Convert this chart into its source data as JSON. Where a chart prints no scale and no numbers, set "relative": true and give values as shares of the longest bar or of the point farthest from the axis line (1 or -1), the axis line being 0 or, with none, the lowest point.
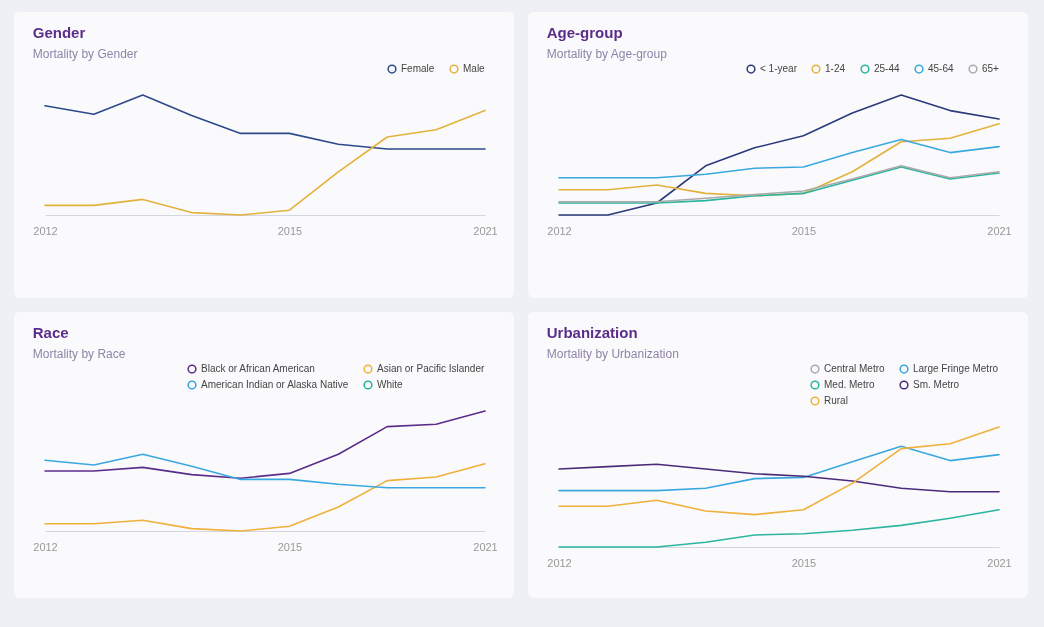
{
  "chart_data": [
    {
      "type": "line",
      "title": "Gender",
      "subtitle": "Mortality by Gender",
      "relative": true,
      "legend": "top right",
      "categories": [
        "2012",
        null,
        null,
        null,
        null,
        "2015",
        null,
        null,
        null,
        "2021"
      ],
      "series": [
        {
          "name": "Female",
          "color": "#2d4a8a",
          "values": [
            0.91,
            0.84,
            1,
            0.83,
            0.68,
            0.68,
            0.59,
            0.55,
            0.55,
            0.55
          ]
        },
        {
          "name": "Male",
          "color": "#e3b23c",
          "values": [
            0.08,
            0.08,
            0.13,
            0.02,
            0,
            0.04,
            0.36,
            0.65,
            0.71,
            0.87
          ]
        }
      ]
    },
    {
      "type": "line",
      "title": "Age-group",
      "subtitle": "Mortality by Age-group",
      "relative": true,
      "legend": "top right",
      "categories": [
        "2012",
        null,
        null,
        null,
        null,
        "2015",
        null,
        null,
        null,
        "2021"
      ],
      "series": [
        {
          "name": "< 1-year",
          "color": "#2b3a7a",
          "values": [
            0,
            0,
            0.1,
            0.41,
            0.56,
            0.66,
            0.85,
            1,
            0.87,
            0.8
          ]
        },
        {
          "name": "1-24",
          "color": "#e3b23c",
          "values": [
            0.21,
            0.21,
            0.25,
            0.18,
            0.16,
            0.18,
            0.36,
            0.61,
            0.64,
            0.76
          ]
        },
        {
          "name": "25-44",
          "color": "#2bb5a0",
          "values": [
            0.1,
            0.1,
            0.1,
            0.12,
            0.16,
            0.18,
            0.29,
            0.4,
            0.3,
            0.35
          ]
        },
        {
          "name": "45-64",
          "color": "#3aa8e0",
          "values": [
            0.31,
            0.31,
            0.31,
            0.34,
            0.39,
            0.4,
            0.52,
            0.63,
            0.52,
            0.57
          ]
        },
        {
          "name": "65+",
          "color": "#aaaaaa",
          "values": [
            0.11,
            0.11,
            0.11,
            0.14,
            0.17,
            0.2,
            0.3,
            0.41,
            0.31,
            0.36
          ]
        }
      ]
    },
    {
      "type": "line",
      "title": "Race",
      "subtitle": "Mortality by Race",
      "relative": true,
      "legend": "top right",
      "categories": [
        "2012",
        null,
        null,
        null,
        null,
        "2015",
        null,
        null,
        null,
        "2021"
      ],
      "series": [
        {
          "name": "Black or African American",
          "color": "#5b2d8a",
          "values": [
            0.5,
            0.5,
            0.53,
            0.47,
            0.44,
            0.48,
            0.64,
            0.87,
            0.89,
            1
          ]
        },
        {
          "name": "Asian or Pacific Islander",
          "color": "#f0b03c",
          "values": [
            0.06,
            0.06,
            0.09,
            0.02,
            0,
            0.04,
            0.2,
            0.42,
            0.45,
            0.56
          ]
        },
        {
          "name": "American Indian or Alaska Native",
          "color": "#3aa8e0",
          "values": [
            0.59,
            0.55,
            0.64,
            0.54,
            0.43,
            0.43,
            0.39,
            0.36,
            0.36,
            0.36
          ]
        },
        {
          "name": "White",
          "color": "#2bb5a0",
          "values": [
            null,
            null,
            null,
            null,
            null,
            null,
            null,
            null,
            null,
            null
          ]
        }
      ]
    },
    {
      "type": "line",
      "title": "Urbanization",
      "subtitle": "Mortality by Urbanization",
      "relative": true,
      "legend": "top right",
      "categories": [
        "2012",
        null,
        null,
        null,
        null,
        "2015",
        null,
        null,
        null,
        "2021"
      ],
      "series": [
        {
          "name": "Central Metro",
          "color": "#aaaaaa",
          "values": [
            null,
            null,
            null,
            null,
            null,
            null,
            null,
            null,
            null,
            null
          ]
        },
        {
          "name": "Large Fringe Metro",
          "color": "#3aa8e0",
          "values": [
            0.47,
            0.47,
            0.47,
            0.49,
            0.57,
            0.58,
            0.71,
            0.84,
            0.72,
            0.77
          ]
        },
        {
          "name": "Med. Metro",
          "color": "#2bb5a0",
          "values": [
            0,
            0,
            0,
            0.04,
            0.1,
            0.11,
            0.14,
            0.18,
            0.24,
            0.31
          ]
        },
        {
          "name": "Sm. Metro",
          "color": "#4b2a7a",
          "values": [
            0.65,
            0.67,
            0.69,
            0.65,
            0.61,
            0.59,
            0.55,
            0.49,
            0.46,
            0.46
          ]
        },
        {
          "name": "Rural",
          "color": "#f0b03c",
          "values": [
            0.34,
            0.34,
            0.39,
            0.3,
            0.27,
            0.31,
            0.53,
            0.82,
            0.86,
            1
          ]
        }
      ]
    }
  ]
}
